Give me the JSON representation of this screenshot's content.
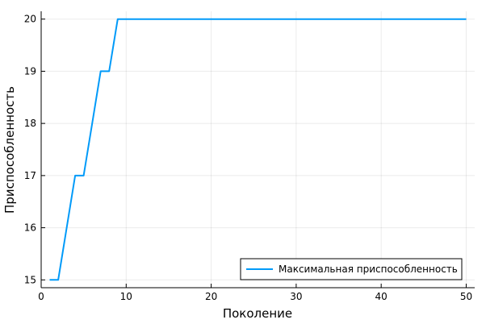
{
  "chart_data": {
    "type": "line",
    "title": "",
    "xlabel": "Поколение",
    "ylabel": "Приспособленность",
    "xlim": [
      0,
      51
    ],
    "ylim": [
      14.85,
      20.15
    ],
    "xticks": [
      0,
      10,
      20,
      30,
      40,
      50
    ],
    "yticks": [
      15,
      16,
      17,
      18,
      19,
      20
    ],
    "xtick_labels": [
      "0",
      "10",
      "20",
      "30",
      "40",
      "50"
    ],
    "ytick_labels": [
      "15",
      "16",
      "17",
      "18",
      "19",
      "20"
    ],
    "grid": true,
    "legend_position": "bottom-right",
    "series": [
      {
        "name": "Максимальная приспособленность",
        "color": "#009af9",
        "x": [
          1,
          2,
          3,
          4,
          5,
          6,
          7,
          8,
          9,
          10,
          11,
          12,
          13,
          14,
          15,
          16,
          17,
          18,
          19,
          20,
          21,
          22,
          23,
          24,
          25,
          26,
          27,
          28,
          29,
          30,
          31,
          32,
          33,
          34,
          35,
          36,
          37,
          38,
          39,
          40,
          41,
          42,
          43,
          44,
          45,
          46,
          47,
          48,
          49,
          50
        ],
        "y": [
          15,
          15,
          16,
          17,
          17,
          18,
          19,
          19,
          20,
          20,
          20,
          20,
          20,
          20,
          20,
          20,
          20,
          20,
          20,
          20,
          20,
          20,
          20,
          20,
          20,
          20,
          20,
          20,
          20,
          20,
          20,
          20,
          20,
          20,
          20,
          20,
          20,
          20,
          20,
          20,
          20,
          20,
          20,
          20,
          20,
          20,
          20,
          20,
          20,
          20
        ]
      }
    ]
  }
}
